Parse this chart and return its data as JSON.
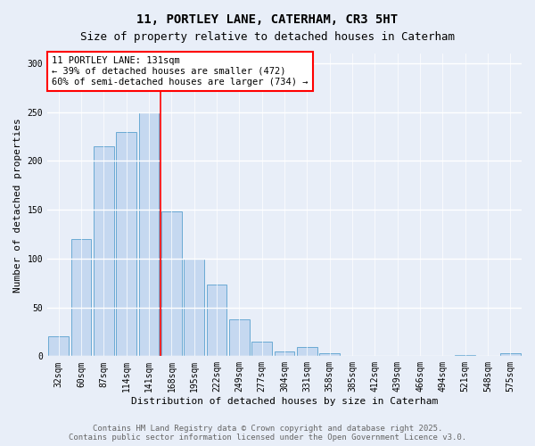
{
  "title1": "11, PORTLEY LANE, CATERHAM, CR3 5HT",
  "title2": "Size of property relative to detached houses in Caterham",
  "xlabel": "Distribution of detached houses by size in Caterham",
  "ylabel": "Number of detached properties",
  "categories": [
    "32sqm",
    "60sqm",
    "87sqm",
    "114sqm",
    "141sqm",
    "168sqm",
    "195sqm",
    "222sqm",
    "249sqm",
    "277sqm",
    "304sqm",
    "331sqm",
    "358sqm",
    "385sqm",
    "412sqm",
    "439sqm",
    "466sqm",
    "494sqm",
    "521sqm",
    "548sqm",
    "575sqm"
  ],
  "values": [
    20,
    120,
    215,
    230,
    250,
    148,
    100,
    73,
    38,
    15,
    5,
    9,
    3,
    0,
    0,
    0,
    0,
    0,
    1,
    0,
    3
  ],
  "bar_color": "#c5d8f0",
  "bar_edge_color": "#6aaad4",
  "vline_color": "red",
  "vline_pos": 4.5,
  "annotation_text": "11 PORTLEY LANE: 131sqm\n← 39% of detached houses are smaller (472)\n60% of semi-detached houses are larger (734) →",
  "annotation_box_color": "white",
  "annotation_box_edge": "red",
  "ylim": [
    0,
    310
  ],
  "yticks": [
    0,
    50,
    100,
    150,
    200,
    250,
    300
  ],
  "footer1": "Contains HM Land Registry data © Crown copyright and database right 2025.",
  "footer2": "Contains public sector information licensed under the Open Government Licence v3.0.",
  "bg_color": "#e8eef8",
  "plot_bg_color": "#e8eef8",
  "grid_color": "white",
  "title1_fontsize": 10,
  "title2_fontsize": 9,
  "axis_label_fontsize": 8,
  "tick_fontsize": 7,
  "annotation_fontsize": 7.5,
  "footer_fontsize": 6.5
}
